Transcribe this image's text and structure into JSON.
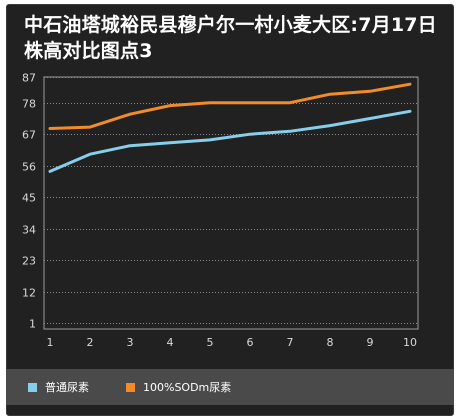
{
  "title": "中石油塔城裕民县穆户尔一村小麦大区:7月17日株高对比图点3",
  "colors": {
    "background": "#212121",
    "series1": "#87ceeb",
    "series2": "#f28c28",
    "grid": "#8a8a8a"
  },
  "chart_data": {
    "type": "line",
    "title": "中石油塔城裕民县穆户尔一村小麦大区:7月17日株高对比图点3",
    "x": [
      "1",
      "2",
      "3",
      "4",
      "5",
      "6",
      "7",
      "8",
      "9",
      "10"
    ],
    "yticks": [
      "1",
      "12",
      "23",
      "34",
      "45",
      "56",
      "67",
      "78",
      "87"
    ],
    "ylim": [
      1,
      87
    ],
    "grid": true,
    "legend_position": "bottom-left",
    "series": [
      {
        "name": "普通尿素",
        "color": "#87ceeb",
        "values": [
          54,
          60,
          63,
          64,
          65,
          67,
          68,
          70,
          72.5,
          75
        ]
      },
      {
        "name": "100%SODm尿素",
        "color": "#f28c28",
        "values": [
          69,
          69.5,
          74,
          77,
          78,
          78,
          78,
          81,
          82,
          84.5
        ]
      }
    ]
  }
}
